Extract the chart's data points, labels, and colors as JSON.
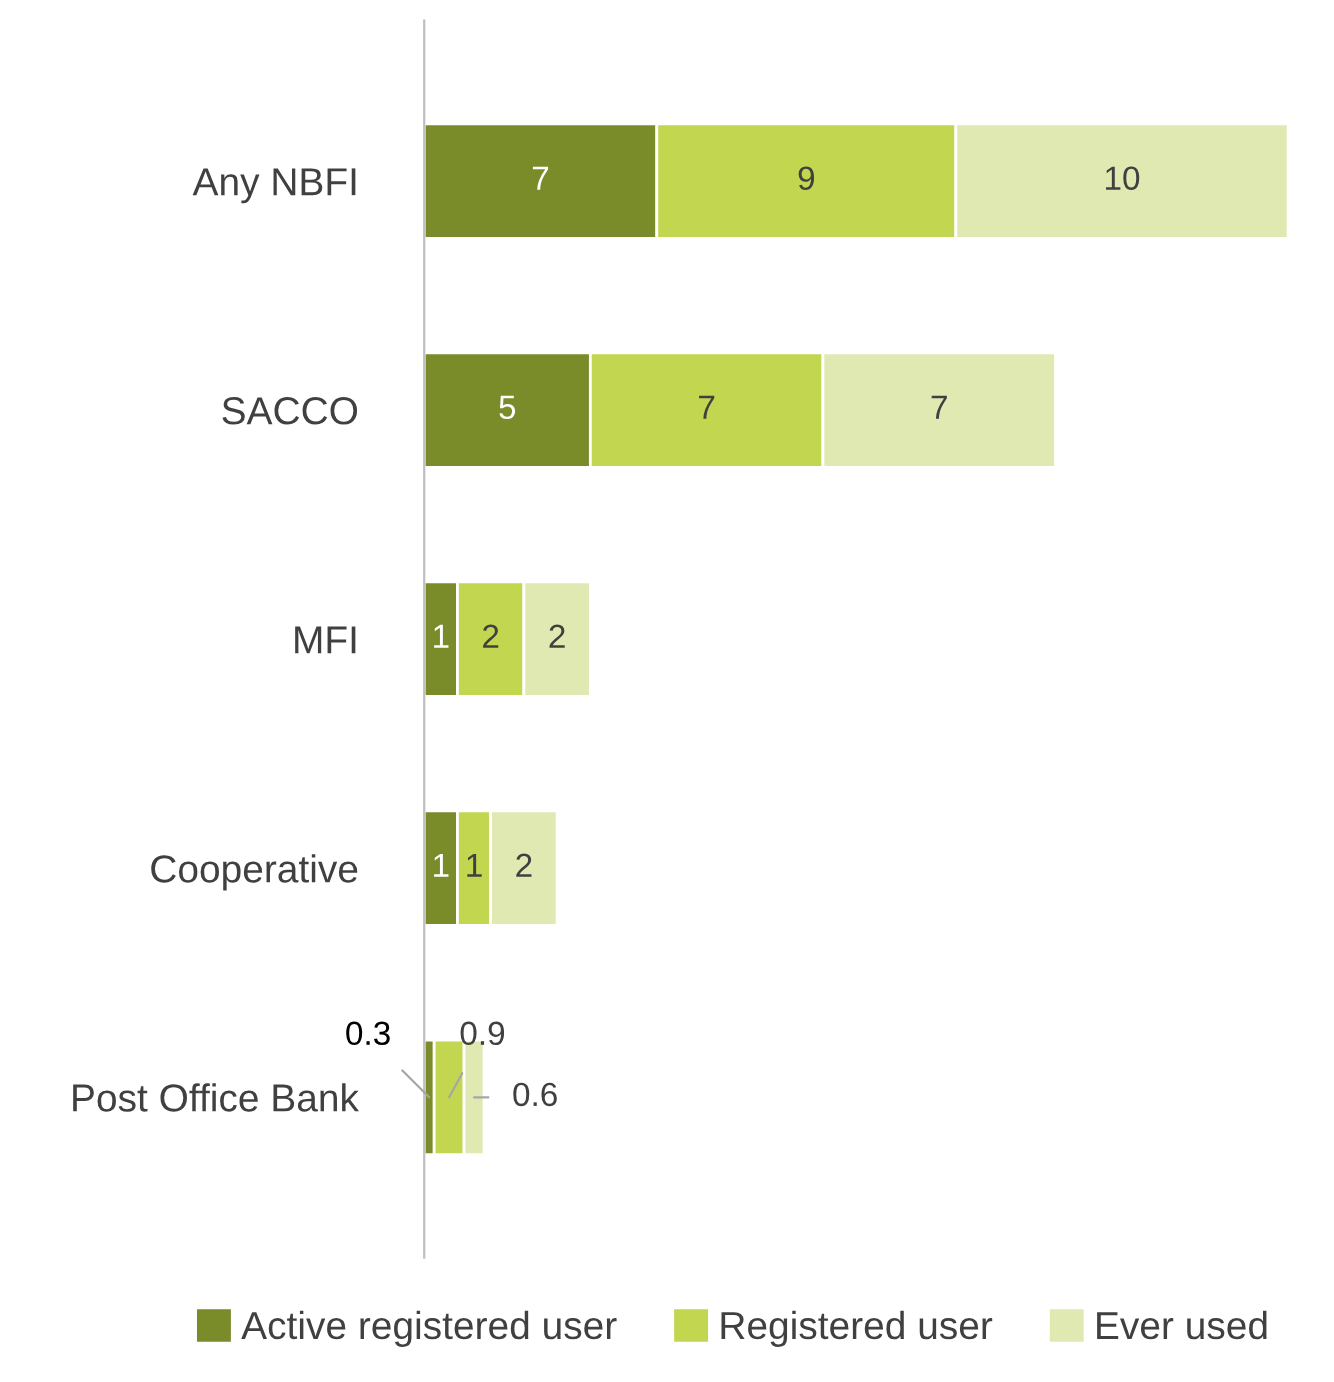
{
  "chart_data": {
    "type": "bar",
    "orientation": "horizontal",
    "stacked": true,
    "data_labels": true,
    "legend": "bottom",
    "tick_labels": "y",
    "grid": false,
    "categories": [
      "Any NBFI",
      "SACCO",
      "MFI",
      "Cooperative",
      "Post Office Bank"
    ],
    "series": [
      {
        "name": "Active registered user",
        "color": "#7a8c2a",
        "values": [
          7,
          5,
          1,
          1,
          0.3
        ]
      },
      {
        "name": "Registered user",
        "color": "#c3d650",
        "values": [
          9,
          7,
          2,
          1,
          0.9
        ]
      },
      {
        "name": "Ever used",
        "color": "#e0e9b2",
        "values": [
          10,
          7,
          2,
          2,
          0.6
        ]
      }
    ]
  }
}
